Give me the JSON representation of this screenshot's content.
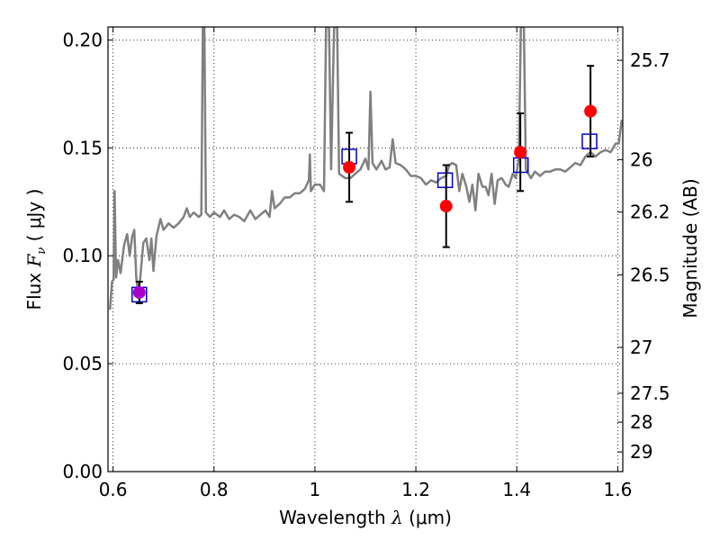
{
  "chart_data": {
    "type": "scatter",
    "xlabel": "Wavelength  λ (μm)",
    "ylabel": "Flux  F_ν  ( μJy )",
    "ylabel_parts": {
      "pre": "Flux  ",
      "sym": "F",
      "sub": "ν",
      "post": "  ( μJy )"
    },
    "xlabel_parts": {
      "pre": "Wavelength  ",
      "sym": "λ",
      "post": " (μm)"
    },
    "y2label": "Magnitude (AB)",
    "xlim": [
      0.59,
      1.61
    ],
    "ylim": [
      0.0,
      0.206
    ],
    "grid": true,
    "x_ticks": [
      {
        "value": 0.6,
        "label": "0.6"
      },
      {
        "value": 0.8,
        "label": "0.8"
      },
      {
        "value": 1.0,
        "label": "1"
      },
      {
        "value": 1.2,
        "label": "1.2"
      },
      {
        "value": 1.4,
        "label": "1.4"
      },
      {
        "value": 1.6,
        "label": "1.6"
      }
    ],
    "y_ticks": [
      {
        "value": 0.0,
        "label": "0.00"
      },
      {
        "value": 0.05,
        "label": "0.05"
      },
      {
        "value": 0.1,
        "label": "0.10"
      },
      {
        "value": 0.15,
        "label": "0.15"
      },
      {
        "value": 0.2,
        "label": "0.20"
      }
    ],
    "y2_ticks": [
      {
        "value": 25.7,
        "label": "25.7"
      },
      {
        "value": 26.0,
        "label": "26"
      },
      {
        "value": 26.2,
        "label": "26.2"
      },
      {
        "value": 26.5,
        "label": "26.5"
      },
      {
        "value": 27.0,
        "label": "27"
      },
      {
        "value": 27.5,
        "label": "27.5"
      },
      {
        "value": 28.0,
        "label": "28"
      },
      {
        "value": 29.0,
        "label": "29"
      }
    ],
    "series": [
      {
        "kind": "line",
        "color": "#808080",
        "points": [
          [
            0.594,
            0.075
          ],
          [
            0.598,
            0.088
          ],
          [
            0.601,
            0.089
          ],
          [
            0.603,
            0.13
          ],
          [
            0.606,
            0.09
          ],
          [
            0.61,
            0.098
          ],
          [
            0.615,
            0.092
          ],
          [
            0.622,
            0.105
          ],
          [
            0.628,
            0.11
          ],
          [
            0.633,
            0.1
          ],
          [
            0.638,
            0.109
          ],
          [
            0.642,
            0.112
          ],
          [
            0.646,
            0.09
          ],
          [
            0.65,
            0.082
          ],
          [
            0.654,
            0.09
          ],
          [
            0.66,
            0.106
          ],
          [
            0.666,
            0.108
          ],
          [
            0.672,
            0.098
          ],
          [
            0.676,
            0.108
          ],
          [
            0.68,
            0.093
          ],
          [
            0.686,
            0.109
          ],
          [
            0.694,
            0.117
          ],
          [
            0.7,
            0.112
          ],
          [
            0.71,
            0.115
          ],
          [
            0.72,
            0.113
          ],
          [
            0.73,
            0.115
          ],
          [
            0.74,
            0.118
          ],
          [
            0.746,
            0.122
          ],
          [
            0.752,
            0.118
          ],
          [
            0.76,
            0.12
          ],
          [
            0.77,
            0.118
          ],
          [
            0.775,
            0.119
          ],
          [
            0.778,
            0.206
          ],
          [
            0.781,
            0.206
          ],
          [
            0.784,
            0.12
          ],
          [
            0.792,
            0.118
          ],
          [
            0.8,
            0.12
          ],
          [
            0.812,
            0.118
          ],
          [
            0.82,
            0.121
          ],
          [
            0.83,
            0.117
          ],
          [
            0.84,
            0.119
          ],
          [
            0.85,
            0.118
          ],
          [
            0.86,
            0.116
          ],
          [
            0.872,
            0.121
          ],
          [
            0.882,
            0.117
          ],
          [
            0.892,
            0.119
          ],
          [
            0.902,
            0.121
          ],
          [
            0.91,
            0.118
          ],
          [
            0.915,
            0.13
          ],
          [
            0.92,
            0.122
          ],
          [
            0.93,
            0.124
          ],
          [
            0.94,
            0.127
          ],
          [
            0.95,
            0.127
          ],
          [
            0.96,
            0.129
          ],
          [
            0.97,
            0.129
          ],
          [
            0.98,
            0.131
          ],
          [
            0.988,
            0.135
          ],
          [
            0.99,
            0.147
          ],
          [
            0.992,
            0.13
          ],
          [
            1.0,
            0.133
          ],
          [
            1.01,
            0.133
          ],
          [
            1.018,
            0.13
          ],
          [
            1.022,
            0.206
          ],
          [
            1.028,
            0.206
          ],
          [
            1.032,
            0.14
          ],
          [
            1.038,
            0.206
          ],
          [
            1.044,
            0.206
          ],
          [
            1.048,
            0.138
          ],
          [
            1.06,
            0.136
          ],
          [
            1.07,
            0.136
          ],
          [
            1.08,
            0.138
          ],
          [
            1.09,
            0.14
          ],
          [
            1.1,
            0.145
          ],
          [
            1.106,
            0.14
          ],
          [
            1.11,
            0.176
          ],
          [
            1.114,
            0.143
          ],
          [
            1.122,
            0.14
          ],
          [
            1.132,
            0.144
          ],
          [
            1.14,
            0.14
          ],
          [
            1.148,
            0.141
          ],
          [
            1.154,
            0.154
          ],
          [
            1.16,
            0.143
          ],
          [
            1.17,
            0.142
          ],
          [
            1.18,
            0.14
          ],
          [
            1.19,
            0.137
          ],
          [
            1.2,
            0.137
          ],
          [
            1.21,
            0.136
          ],
          [
            1.22,
            0.133
          ],
          [
            1.23,
            0.135
          ],
          [
            1.24,
            0.134
          ],
          [
            1.25,
            0.136
          ],
          [
            1.26,
            0.137
          ],
          [
            1.266,
            0.142
          ],
          [
            1.272,
            0.143
          ],
          [
            1.28,
            0.142
          ],
          [
            1.286,
            0.13
          ],
          [
            1.292,
            0.138
          ],
          [
            1.3,
            0.132
          ],
          [
            1.306,
            0.125
          ],
          [
            1.312,
            0.133
          ],
          [
            1.318,
            0.121
          ],
          [
            1.324,
            0.138
          ],
          [
            1.332,
            0.132
          ],
          [
            1.338,
            0.132
          ],
          [
            1.344,
            0.128
          ],
          [
            1.35,
            0.138
          ],
          [
            1.356,
            0.124
          ],
          [
            1.362,
            0.135
          ],
          [
            1.37,
            0.136
          ],
          [
            1.378,
            0.133
          ],
          [
            1.384,
            0.132
          ],
          [
            1.392,
            0.138
          ],
          [
            1.398,
            0.136
          ],
          [
            1.404,
            0.145
          ],
          [
            1.408,
            0.206
          ],
          [
            1.414,
            0.206
          ],
          [
            1.418,
            0.14
          ],
          [
            1.428,
            0.136
          ],
          [
            1.436,
            0.139
          ],
          [
            1.446,
            0.137
          ],
          [
            1.456,
            0.139
          ],
          [
            1.466,
            0.139
          ],
          [
            1.476,
            0.14
          ],
          [
            1.486,
            0.14
          ],
          [
            1.496,
            0.139
          ],
          [
            1.506,
            0.141
          ],
          [
            1.516,
            0.143
          ],
          [
            1.526,
            0.142
          ],
          [
            1.536,
            0.146
          ],
          [
            1.546,
            0.148
          ],
          [
            1.556,
            0.146
          ],
          [
            1.566,
            0.148
          ],
          [
            1.576,
            0.149
          ],
          [
            1.586,
            0.148
          ],
          [
            1.596,
            0.152
          ],
          [
            1.602,
            0.152
          ],
          [
            1.608,
            0.163
          ]
        ]
      },
      {
        "kind": "square",
        "color": "#0000cc",
        "points": [
          {
            "x": 0.652,
            "y": 0.082
          },
          {
            "x": 1.068,
            "y": 0.146
          },
          {
            "x": 1.258,
            "y": 0.135
          },
          {
            "x": 1.408,
            "y": 0.142
          },
          {
            "x": 1.544,
            "y": 0.153
          }
        ]
      },
      {
        "kind": "circle",
        "color": "#ff0000",
        "points": [
          {
            "x": 0.652,
            "y": 0.083,
            "err": 0.005,
            "color": "#aa00cc"
          },
          {
            "x": 1.068,
            "y": 0.141,
            "err": 0.016
          },
          {
            "x": 1.26,
            "y": 0.123,
            "err": 0.019
          },
          {
            "x": 1.407,
            "y": 0.148,
            "err": 0.018
          },
          {
            "x": 1.546,
            "y": 0.167,
            "err": 0.021
          }
        ]
      }
    ]
  }
}
